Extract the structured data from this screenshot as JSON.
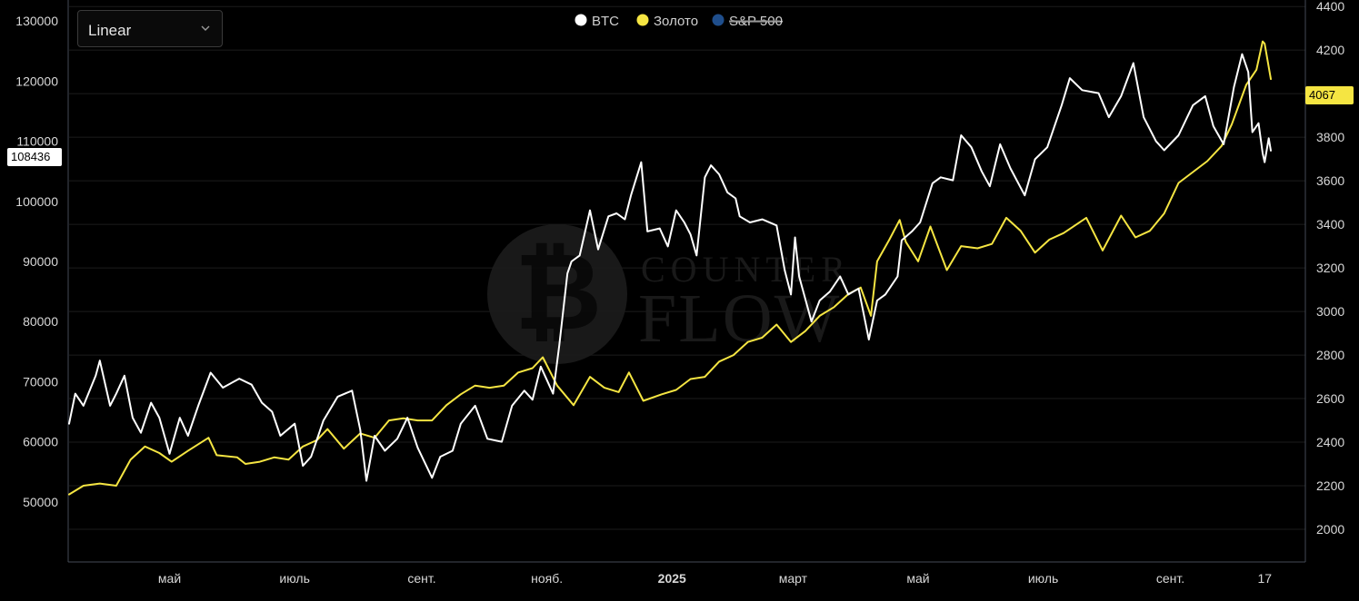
{
  "selector": {
    "value": "Linear",
    "icon": "chevron-down-icon"
  },
  "legend": [
    {
      "label": "BTC",
      "color": "#ffffff",
      "hidden": false
    },
    {
      "label": "Золото",
      "color": "#f5e542",
      "hidden": false
    },
    {
      "label": "S&P 500",
      "color": "#1f4e8c",
      "hidden": true
    }
  ],
  "watermark": {
    "line1": "COUNTER",
    "line2": "FLOW"
  },
  "markers": {
    "btc": "108436",
    "gold": "4067"
  },
  "colors": {
    "background": "#000000",
    "btc": "#ffffff",
    "gold": "#f5e542",
    "grid": "#1c1c1c"
  },
  "chart_data": {
    "type": "line",
    "title": "",
    "x_range": [
      "2024-03-13",
      "2025-10-20"
    ],
    "x_ticks": [
      {
        "label": "май",
        "date": "2024-05-01",
        "bold": false
      },
      {
        "label": "июль",
        "date": "2024-07-01",
        "bold": false
      },
      {
        "label": "сент.",
        "date": "2024-09-01",
        "bold": false
      },
      {
        "label": "нояб.",
        "date": "2024-11-01",
        "bold": false
      },
      {
        "label": "2025",
        "date": "2025-01-01",
        "bold": true
      },
      {
        "label": "март",
        "date": "2025-03-01",
        "bold": false
      },
      {
        "label": "май",
        "date": "2025-05-01",
        "bold": false
      },
      {
        "label": "июль",
        "date": "2025-07-01",
        "bold": false
      },
      {
        "label": "сент.",
        "date": "2025-09-01",
        "bold": false
      },
      {
        "label": "17",
        "date": "2025-10-17",
        "bold": false
      }
    ],
    "y_left": {
      "label": "BTC",
      "range": [
        40000,
        133500
      ],
      "ticks": [
        50000,
        60000,
        70000,
        80000,
        90000,
        100000,
        110000,
        120000,
        130000
      ]
    },
    "y_right": {
      "label": "Золото",
      "range": [
        1850,
        4430
      ],
      "ticks": [
        2000,
        2200,
        2400,
        2600,
        2800,
        3000,
        3200,
        3400,
        3600,
        3800,
        4000,
        4200,
        4400
      ]
    },
    "series": [
      {
        "name": "BTC",
        "axis": "left",
        "points": [
          [
            "2024-03-13",
            63000
          ],
          [
            "2024-03-16",
            68000
          ],
          [
            "2024-03-20",
            66000
          ],
          [
            "2024-03-26",
            71000
          ],
          [
            "2024-03-28",
            73500
          ],
          [
            "2024-04-02",
            66000
          ],
          [
            "2024-04-05",
            68000
          ],
          [
            "2024-04-09",
            71000
          ],
          [
            "2024-04-13",
            64000
          ],
          [
            "2024-04-17",
            61500
          ],
          [
            "2024-04-22",
            66500
          ],
          [
            "2024-04-26",
            64000
          ],
          [
            "2024-05-01",
            58000
          ],
          [
            "2024-05-06",
            64000
          ],
          [
            "2024-05-10",
            61000
          ],
          [
            "2024-05-15",
            66000
          ],
          [
            "2024-05-21",
            71500
          ],
          [
            "2024-05-27",
            69000
          ],
          [
            "2024-06-04",
            70500
          ],
          [
            "2024-06-10",
            69500
          ],
          [
            "2024-06-15",
            66500
          ],
          [
            "2024-06-20",
            65000
          ],
          [
            "2024-06-24",
            61000
          ],
          [
            "2024-07-01",
            63000
          ],
          [
            "2024-07-05",
            56000
          ],
          [
            "2024-07-09",
            57500
          ],
          [
            "2024-07-15",
            63500
          ],
          [
            "2024-07-22",
            67500
          ],
          [
            "2024-07-29",
            68500
          ],
          [
            "2024-08-02",
            62000
          ],
          [
            "2024-08-05",
            53500
          ],
          [
            "2024-08-09",
            61000
          ],
          [
            "2024-08-14",
            58500
          ],
          [
            "2024-08-20",
            60500
          ],
          [
            "2024-08-25",
            64000
          ],
          [
            "2024-08-30",
            59000
          ],
          [
            "2024-09-06",
            54000
          ],
          [
            "2024-09-10",
            57500
          ],
          [
            "2024-09-16",
            58500
          ],
          [
            "2024-09-20",
            63000
          ],
          [
            "2024-09-27",
            66000
          ],
          [
            "2024-10-03",
            60500
          ],
          [
            "2024-10-10",
            60000
          ],
          [
            "2024-10-15",
            66000
          ],
          [
            "2024-10-21",
            68500
          ],
          [
            "2024-10-25",
            67000
          ],
          [
            "2024-10-29",
            72500
          ],
          [
            "2024-11-04",
            68000
          ],
          [
            "2024-11-07",
            76000
          ],
          [
            "2024-11-11",
            88000
          ],
          [
            "2024-11-13",
            90000
          ],
          [
            "2024-11-17",
            91000
          ],
          [
            "2024-11-22",
            98500
          ],
          [
            "2024-11-26",
            92000
          ],
          [
            "2024-12-01",
            97500
          ],
          [
            "2024-12-05",
            98000
          ],
          [
            "2024-12-09",
            97000
          ],
          [
            "2024-12-12",
            101000
          ],
          [
            "2024-12-17",
            106500
          ],
          [
            "2024-12-20",
            95000
          ],
          [
            "2024-12-26",
            95500
          ],
          [
            "2024-12-30",
            92500
          ],
          [
            "2025-01-03",
            98500
          ],
          [
            "2025-01-07",
            96500
          ],
          [
            "2025-01-10",
            94500
          ],
          [
            "2025-01-13",
            91000
          ],
          [
            "2025-01-17",
            104000
          ],
          [
            "2025-01-20",
            106000
          ],
          [
            "2025-01-24",
            104500
          ],
          [
            "2025-01-28",
            101500
          ],
          [
            "2025-02-01",
            100500
          ],
          [
            "2025-02-03",
            97500
          ],
          [
            "2025-02-08",
            96500
          ],
          [
            "2025-02-14",
            97000
          ],
          [
            "2025-02-21",
            96000
          ],
          [
            "2025-02-25",
            88500
          ],
          [
            "2025-02-28",
            84500
          ],
          [
            "2025-03-02",
            94000
          ],
          [
            "2025-03-04",
            87500
          ],
          [
            "2025-03-10",
            80000
          ],
          [
            "2025-03-14",
            83500
          ],
          [
            "2025-03-19",
            85000
          ],
          [
            "2025-03-24",
            87500
          ],
          [
            "2025-03-28",
            84500
          ],
          [
            "2025-04-02",
            85500
          ],
          [
            "2025-04-07",
            77000
          ],
          [
            "2025-04-11",
            83500
          ],
          [
            "2025-04-15",
            84500
          ],
          [
            "2025-04-21",
            87500
          ],
          [
            "2025-04-23",
            93500
          ],
          [
            "2025-04-28",
            95000
          ],
          [
            "2025-05-02",
            96500
          ],
          [
            "2025-05-08",
            103000
          ],
          [
            "2025-05-12",
            104000
          ],
          [
            "2025-05-18",
            103500
          ],
          [
            "2025-05-22",
            111000
          ],
          [
            "2025-05-27",
            109000
          ],
          [
            "2025-06-01",
            105000
          ],
          [
            "2025-06-05",
            102500
          ],
          [
            "2025-06-10",
            109500
          ],
          [
            "2025-06-15",
            105500
          ],
          [
            "2025-06-22",
            101000
          ],
          [
            "2025-06-27",
            107000
          ],
          [
            "2025-07-03",
            109000
          ],
          [
            "2025-07-10",
            116000
          ],
          [
            "2025-07-14",
            120500
          ],
          [
            "2025-07-20",
            118500
          ],
          [
            "2025-07-28",
            118000
          ],
          [
            "2025-08-02",
            114000
          ],
          [
            "2025-08-08",
            117500
          ],
          [
            "2025-08-14",
            123000
          ],
          [
            "2025-08-19",
            114000
          ],
          [
            "2025-08-25",
            110000
          ],
          [
            "2025-08-29",
            108500
          ],
          [
            "2025-09-05",
            111000
          ],
          [
            "2025-09-12",
            116000
          ],
          [
            "2025-09-18",
            117500
          ],
          [
            "2025-09-22",
            112500
          ],
          [
            "2025-09-27",
            109500
          ],
          [
            "2025-10-02",
            119000
          ],
          [
            "2025-10-06",
            124500
          ],
          [
            "2025-10-09",
            121500
          ],
          [
            "2025-10-11",
            111500
          ],
          [
            "2025-10-14",
            113000
          ],
          [
            "2025-10-16",
            108000
          ],
          [
            "2025-10-17",
            106500
          ],
          [
            "2025-10-19",
            110500
          ],
          [
            "2025-10-20",
            108436
          ]
        ]
      },
      {
        "name": "Золото",
        "axis": "right",
        "points": [
          [
            "2024-03-13",
            2160
          ],
          [
            "2024-03-20",
            2200
          ],
          [
            "2024-03-28",
            2210
          ],
          [
            "2024-04-05",
            2200
          ],
          [
            "2024-04-12",
            2320
          ],
          [
            "2024-04-19",
            2380
          ],
          [
            "2024-04-26",
            2350
          ],
          [
            "2024-05-02",
            2310
          ],
          [
            "2024-05-10",
            2360
          ],
          [
            "2024-05-20",
            2420
          ],
          [
            "2024-05-24",
            2340
          ],
          [
            "2024-06-03",
            2330
          ],
          [
            "2024-06-07",
            2300
          ],
          [
            "2024-06-14",
            2310
          ],
          [
            "2024-06-21",
            2330
          ],
          [
            "2024-06-28",
            2320
          ],
          [
            "2024-07-05",
            2380
          ],
          [
            "2024-07-12",
            2410
          ],
          [
            "2024-07-17",
            2460
          ],
          [
            "2024-07-25",
            2370
          ],
          [
            "2024-08-02",
            2440
          ],
          [
            "2024-08-09",
            2420
          ],
          [
            "2024-08-16",
            2500
          ],
          [
            "2024-08-23",
            2510
          ],
          [
            "2024-08-30",
            2500
          ],
          [
            "2024-09-06",
            2500
          ],
          [
            "2024-09-13",
            2570
          ],
          [
            "2024-09-20",
            2620
          ],
          [
            "2024-09-27",
            2660
          ],
          [
            "2024-10-04",
            2650
          ],
          [
            "2024-10-11",
            2660
          ],
          [
            "2024-10-18",
            2720
          ],
          [
            "2024-10-25",
            2740
          ],
          [
            "2024-10-30",
            2790
          ],
          [
            "2024-11-06",
            2660
          ],
          [
            "2024-11-14",
            2570
          ],
          [
            "2024-11-22",
            2700
          ],
          [
            "2024-11-29",
            2650
          ],
          [
            "2024-12-06",
            2630
          ],
          [
            "2024-12-11",
            2720
          ],
          [
            "2024-12-18",
            2590
          ],
          [
            "2024-12-27",
            2620
          ],
          [
            "2025-01-03",
            2640
          ],
          [
            "2025-01-10",
            2690
          ],
          [
            "2025-01-17",
            2700
          ],
          [
            "2025-01-24",
            2770
          ],
          [
            "2025-01-31",
            2800
          ],
          [
            "2025-02-07",
            2860
          ],
          [
            "2025-02-14",
            2880
          ],
          [
            "2025-02-21",
            2940
          ],
          [
            "2025-02-28",
            2860
          ],
          [
            "2025-03-07",
            2910
          ],
          [
            "2025-03-14",
            2980
          ],
          [
            "2025-03-21",
            3020
          ],
          [
            "2025-03-28",
            3080
          ],
          [
            "2025-04-03",
            3110
          ],
          [
            "2025-04-08",
            2980
          ],
          [
            "2025-04-11",
            3230
          ],
          [
            "2025-04-17",
            3330
          ],
          [
            "2025-04-22",
            3420
          ],
          [
            "2025-04-25",
            3320
          ],
          [
            "2025-05-01",
            3230
          ],
          [
            "2025-05-07",
            3390
          ],
          [
            "2025-05-15",
            3190
          ],
          [
            "2025-05-22",
            3300
          ],
          [
            "2025-05-30",
            3290
          ],
          [
            "2025-06-06",
            3310
          ],
          [
            "2025-06-13",
            3430
          ],
          [
            "2025-06-20",
            3370
          ],
          [
            "2025-06-27",
            3270
          ],
          [
            "2025-07-04",
            3330
          ],
          [
            "2025-07-11",
            3360
          ],
          [
            "2025-07-22",
            3430
          ],
          [
            "2025-07-30",
            3280
          ],
          [
            "2025-08-08",
            3440
          ],
          [
            "2025-08-15",
            3340
          ],
          [
            "2025-08-22",
            3370
          ],
          [
            "2025-08-29",
            3450
          ],
          [
            "2025-09-05",
            3590
          ],
          [
            "2025-09-12",
            3640
          ],
          [
            "2025-09-19",
            3690
          ],
          [
            "2025-09-26",
            3760
          ],
          [
            "2025-10-01",
            3860
          ],
          [
            "2025-10-08",
            4040
          ],
          [
            "2025-10-13",
            4110
          ],
          [
            "2025-10-16",
            4240
          ],
          [
            "2025-10-17",
            4230
          ],
          [
            "2025-10-20",
            4067
          ]
        ]
      },
      {
        "name": "S&P 500",
        "axis": "right",
        "hidden": true,
        "points": []
      }
    ]
  }
}
